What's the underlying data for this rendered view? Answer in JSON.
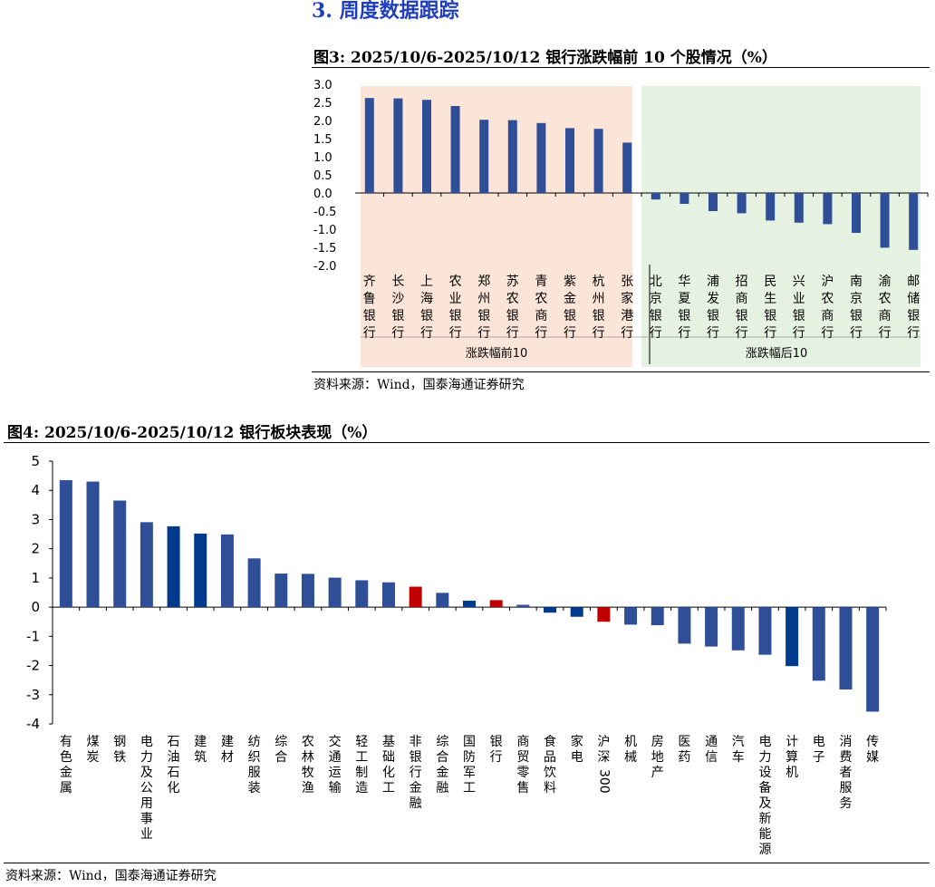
{
  "section": {
    "heading": "3.  周度数据跟踪"
  },
  "figure3": {
    "title": "图3:  2025/10/6-2025/10/12 银行涨跌幅前 10 个股情况（%）",
    "source": "资料来源：Wind，国泰海通证券研究",
    "colors": {
      "bar": "#2e4f98",
      "top_bg": "#fbe5d8",
      "bottom_bg": "#e6f2e1"
    },
    "chart_data": {
      "type": "bar",
      "title": "2025/10/6-2025/10/12 银行涨跌幅前 10 个股情况（%）",
      "ylim": [
        -2.0,
        3.0
      ],
      "yticks": [
        "3.0",
        "2.5",
        "2.0",
        "1.5",
        "1.0",
        "0.5",
        "0.0",
        "-0.5",
        "-1.0",
        "-1.5",
        "-2.0"
      ],
      "groups": [
        {
          "label": "涨跌幅前10",
          "categories": [
            "齐鲁银行",
            "长沙银行",
            "上海银行",
            "农业银行",
            "郑州银行",
            "苏农银行",
            "青农商行",
            "紫金银行",
            "杭州银行",
            "张家港行"
          ],
          "values": [
            2.62,
            2.61,
            2.57,
            2.4,
            2.02,
            2.01,
            1.93,
            1.79,
            1.77,
            1.39
          ]
        },
        {
          "label": "涨跌幅后10",
          "categories": [
            "北京银行",
            "华夏银行",
            "浦发银行",
            "招商银行",
            "民生银行",
            "兴业银行",
            "沪农商行",
            "南京银行",
            "渝农商行",
            "邮储银行"
          ],
          "values": [
            -0.18,
            -0.3,
            -0.5,
            -0.56,
            -0.76,
            -0.82,
            -0.86,
            -1.1,
            -1.51,
            -1.57
          ]
        }
      ]
    }
  },
  "figure4": {
    "title": "图4:  2025/10/6-2025/10/12 银行板块表现（%）",
    "source": "资料来源：Wind，国泰海通证券研究",
    "colors": {
      "default": "#2e4f98",
      "highlight_blue": "#003a8c",
      "highlight_red": "#c00000"
    },
    "chart_data": {
      "type": "bar",
      "title": "2025/10/6-2025/10/12 银行板块表现（%）",
      "ylim": [
        -4,
        5
      ],
      "yticks": [
        "5",
        "4",
        "3",
        "2",
        "1",
        "0",
        "-1",
        "-2",
        "-3",
        "-4"
      ],
      "categories": [
        "有色金属",
        "煤炭",
        "钢铁",
        "电力及公用事业",
        "石油石化",
        "建筑",
        "建材",
        "纺织服装",
        "综合",
        "农林牧渔",
        "交通运输",
        "轻工制造",
        "基础化工",
        "非银行金融",
        "综合金融",
        "国防军工",
        "银行",
        "商贸零售",
        "食品饮料",
        "家电",
        "沪深300",
        "机械",
        "房地产",
        "医药",
        "通信",
        "汽车",
        "电力设备及新能源",
        "计算机",
        "电子",
        "消费者服务",
        "传媒"
      ],
      "values": [
        4.35,
        4.3,
        3.65,
        2.91,
        2.77,
        2.52,
        2.49,
        1.67,
        1.15,
        1.14,
        1.01,
        0.92,
        0.85,
        0.7,
        0.49,
        0.22,
        0.24,
        0.08,
        -0.19,
        -0.33,
        -0.5,
        -0.6,
        -0.62,
        -1.25,
        -1.35,
        -1.48,
        -1.63,
        -2.02,
        -2.52,
        -2.82,
        -3.58
      ],
      "bar_colors": [
        "default",
        "default",
        "default",
        "default",
        "highlight_blue",
        "highlight_blue",
        "default",
        "default",
        "default",
        "default",
        "default",
        "default",
        "default",
        "highlight_red",
        "default",
        "highlight_blue",
        "highlight_red",
        "default",
        "highlight_blue",
        "highlight_blue",
        "highlight_red",
        "default",
        "default",
        "default",
        "default",
        "default",
        "default",
        "highlight_blue",
        "default",
        "default",
        "default"
      ]
    }
  }
}
